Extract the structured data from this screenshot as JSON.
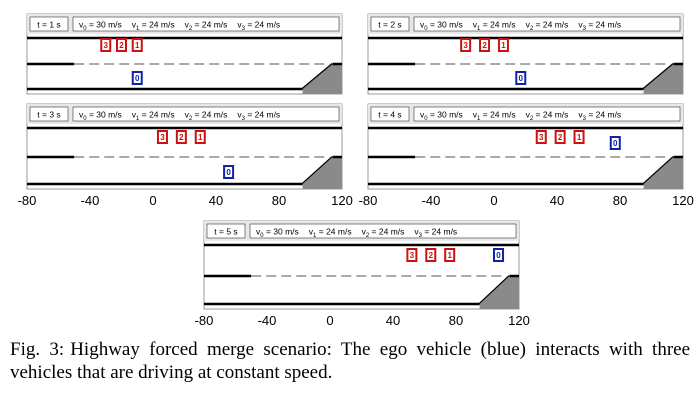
{
  "panels": [
    {
      "time_label": "t = 1 s",
      "speeds": [
        "v",
        "0",
        " = 30 m/s",
        "v",
        "1",
        " = 24 m/s",
        "v",
        "2",
        " = 24 m/s",
        "v",
        "3",
        " = 24 m/s"
      ],
      "vehicles": [
        {
          "id": "3",
          "x": -30,
          "lane": "main",
          "color": "#cc1111"
        },
        {
          "id": "2",
          "x": -20,
          "lane": "main",
          "color": "#cc1111"
        },
        {
          "id": "1",
          "x": -10,
          "lane": "main",
          "color": "#cc1111"
        },
        {
          "id": "0",
          "x": -10,
          "lane": "merge",
          "color": "#1122aa"
        }
      ]
    },
    {
      "time_label": "t = 2 s",
      "speeds": [
        "v",
        "0",
        " = 30 m/s",
        "v",
        "1",
        " = 24 m/s",
        "v",
        "2",
        " = 24 m/s",
        "v",
        "3",
        " = 24 m/s"
      ],
      "vehicles": [
        {
          "id": "3",
          "x": -18,
          "lane": "main",
          "color": "#cc1111"
        },
        {
          "id": "2",
          "x": -6,
          "lane": "main",
          "color": "#cc1111"
        },
        {
          "id": "1",
          "x": 6,
          "lane": "main",
          "color": "#cc1111"
        },
        {
          "id": "0",
          "x": 17,
          "lane": "merge",
          "color": "#1122aa"
        }
      ]
    },
    {
      "time_label": "t = 3 s",
      "speeds": [
        "v",
        "0",
        " = 30 m/s",
        "v",
        "1",
        " = 24 m/s",
        "v",
        "2",
        " = 24 m/s",
        "v",
        "3",
        " = 24 m/s"
      ],
      "vehicles": [
        {
          "id": "3",
          "x": 6,
          "lane": "main",
          "color": "#cc1111"
        },
        {
          "id": "2",
          "x": 18,
          "lane": "main",
          "color": "#cc1111"
        },
        {
          "id": "1",
          "x": 30,
          "lane": "main",
          "color": "#cc1111"
        },
        {
          "id": "0",
          "x": 48,
          "lane": "merge",
          "color": "#1122aa"
        }
      ]
    },
    {
      "time_label": "t = 4 s",
      "speeds": [
        "v",
        "0",
        " = 30 m/s",
        "v",
        "1",
        " = 24 m/s",
        "v",
        "2",
        " = 24 m/s",
        "v",
        "3",
        " = 24 m/s"
      ],
      "vehicles": [
        {
          "id": "3",
          "x": 30,
          "lane": "main",
          "color": "#cc1111"
        },
        {
          "id": "2",
          "x": 42,
          "lane": "main",
          "color": "#cc1111"
        },
        {
          "id": "1",
          "x": 54,
          "lane": "main",
          "color": "#cc1111"
        },
        {
          "id": "0",
          "x": 77,
          "lane": "upper",
          "color": "#1122aa"
        }
      ]
    },
    {
      "time_label": "t = 5 s",
      "speeds": [
        "v",
        "0",
        " = 30 m/s",
        "v",
        "1",
        " = 24 m/s",
        "v",
        "2",
        " = 24 m/s",
        "v",
        "3",
        " = 24 m/s"
      ],
      "vehicles": [
        {
          "id": "3",
          "x": 52,
          "lane": "main",
          "color": "#cc1111"
        },
        {
          "id": "2",
          "x": 64,
          "lane": "main",
          "color": "#cc1111"
        },
        {
          "id": "1",
          "x": 76,
          "lane": "main",
          "color": "#cc1111"
        },
        {
          "id": "0",
          "x": 107,
          "lane": "main",
          "color": "#1122aa"
        }
      ]
    }
  ],
  "axis": {
    "ticks": [
      "-80",
      "-40",
      "0",
      "40",
      "80",
      "120"
    ],
    "range": [
      -80,
      120
    ]
  },
  "caption": {
    "label": "Fig. 3:",
    "text": "Highway forced merge scenario: The ego vehicle (blue) interacts with three vehicles that are driving at constant speed."
  }
}
